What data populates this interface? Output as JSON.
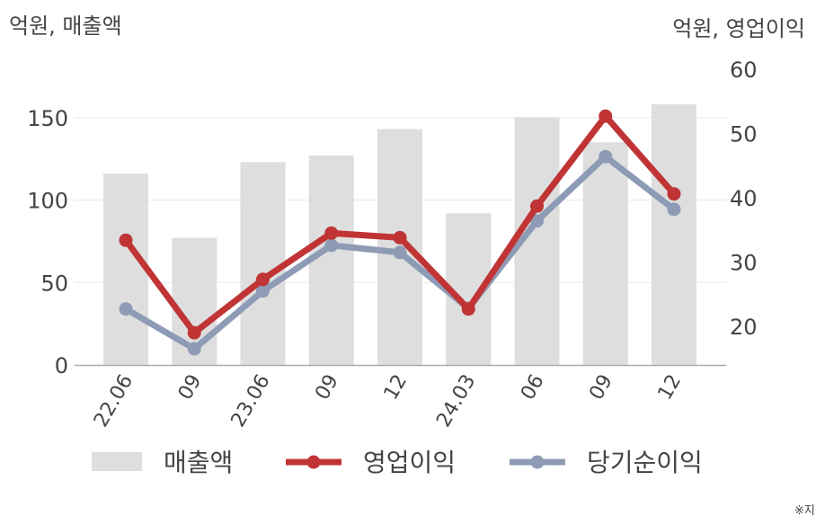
{
  "chart_data": {
    "type": "bar+line",
    "left_axis_label": "억원, 매출액",
    "right_axis_label": "억원, 영업이익",
    "categories": [
      "22.06",
      "09",
      "23.06",
      "09",
      "12",
      "24.03",
      "06",
      "09",
      "12"
    ],
    "left_ticks": [
      0,
      50,
      100,
      150
    ],
    "right_ticks": [
      20,
      30,
      40,
      50,
      60
    ],
    "ylim_left": [
      0,
      165
    ],
    "ylim_right": [
      14,
      62
    ],
    "grid": true,
    "legend_position": "bottom",
    "series": [
      {
        "name": "매출액",
        "kind": "bar",
        "axis": "left",
        "color": "#dedede",
        "values": [
          116,
          77,
          123,
          127,
          143,
          92,
          150,
          135,
          158
        ]
      },
      {
        "name": "영업이익",
        "kind": "line",
        "axis": "right",
        "color": "#c03435",
        "values": [
          33.4,
          19.0,
          27.3,
          34.5,
          33.8,
          22.7,
          38.7,
          52.7,
          40.6
        ]
      },
      {
        "name": "당기순이익",
        "kind": "line",
        "axis": "right",
        "color": "#8e9bb5",
        "values": [
          22.7,
          16.5,
          25.5,
          32.6,
          31.5,
          22.8,
          36.4,
          46.4,
          38.2
        ]
      }
    ]
  },
  "footnote": "※지"
}
